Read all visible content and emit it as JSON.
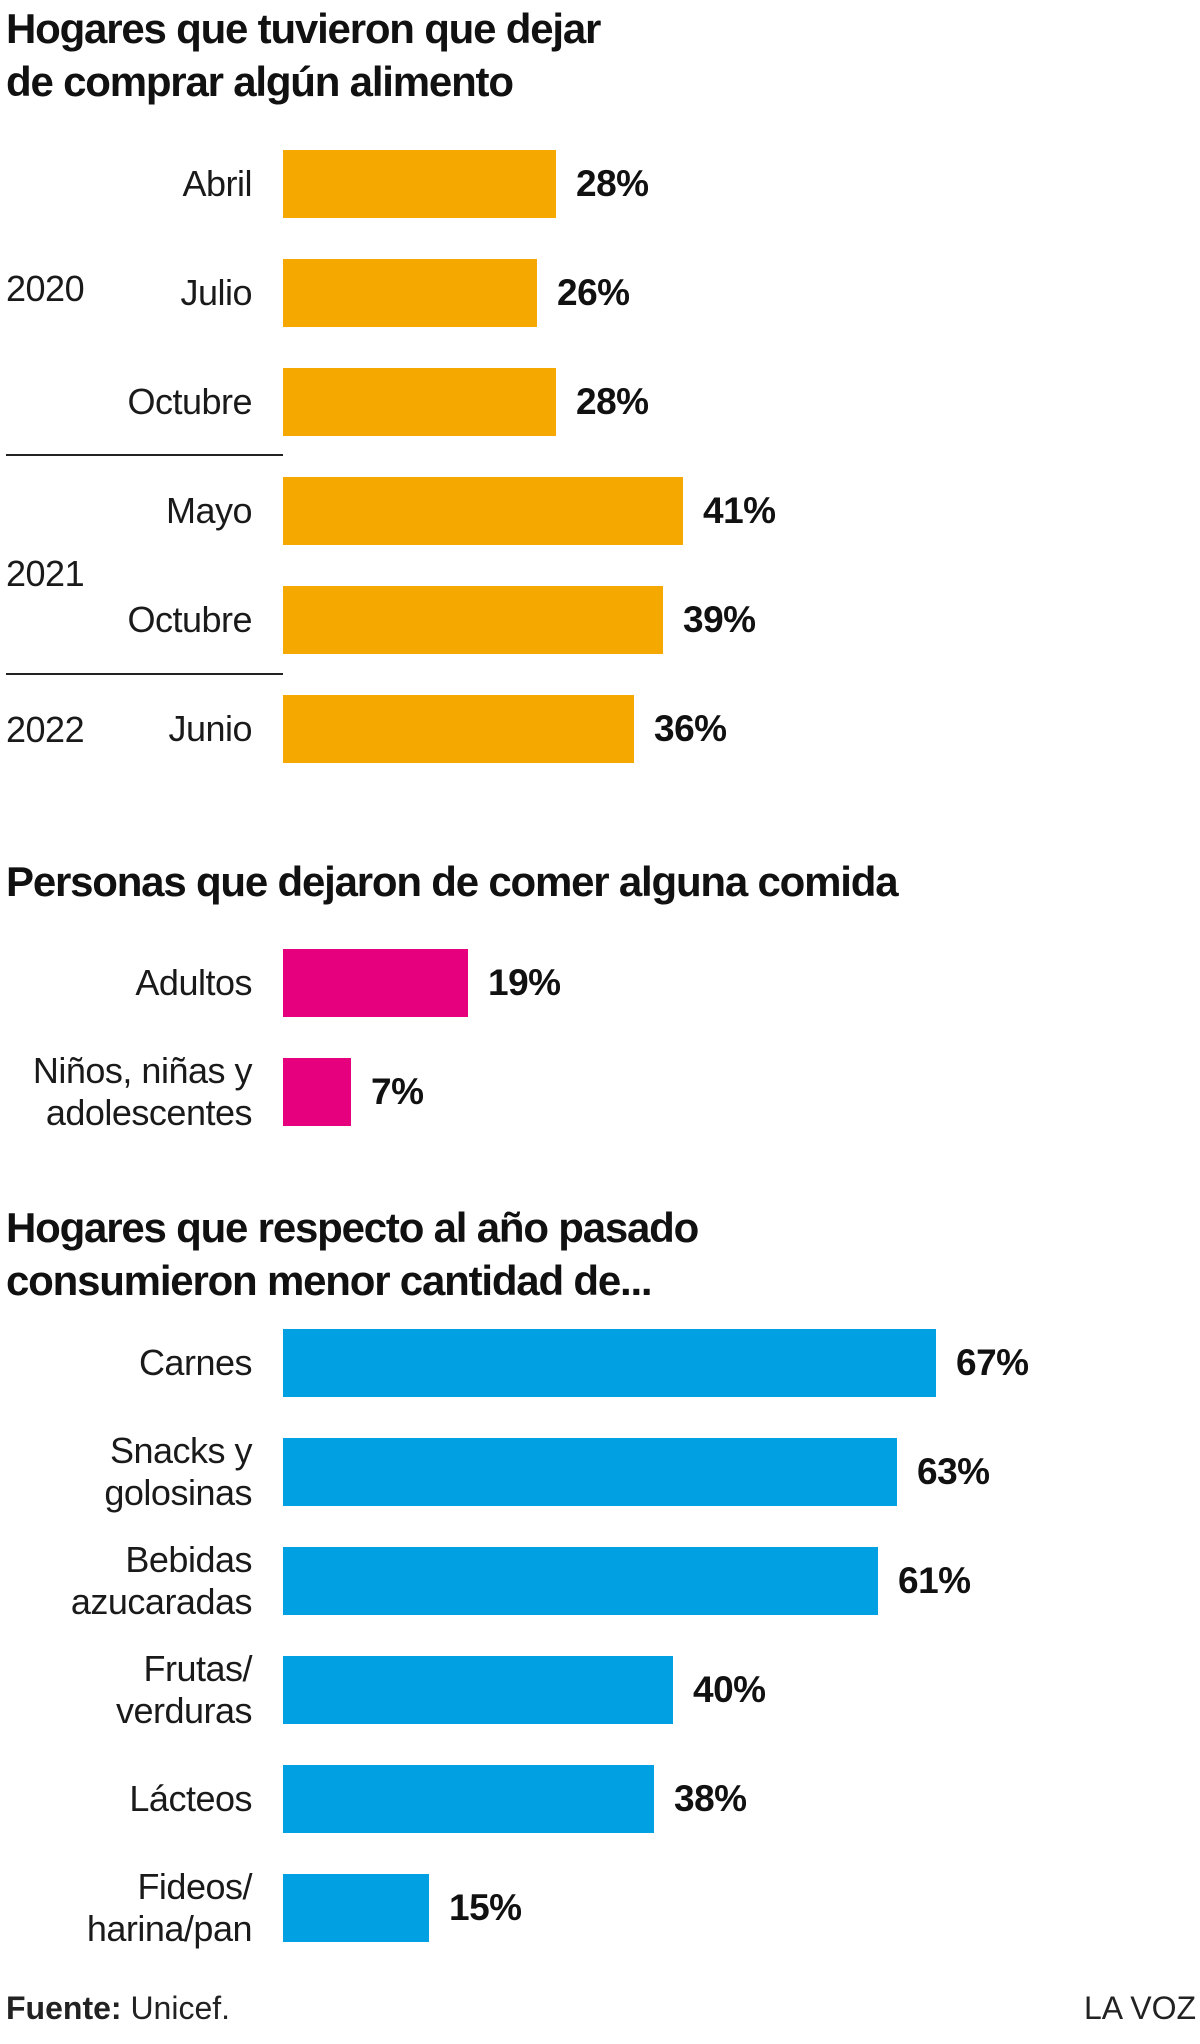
{
  "chart_data": [
    {
      "type": "bar",
      "orientation": "horizontal",
      "title_lines": [
        "Hogares que tuvieron que dejar",
        "de comprar algún alimento"
      ],
      "groups": [
        {
          "label": "2020",
          "categories": [
            "Abril",
            "Julio",
            "Octubre"
          ]
        },
        {
          "label": "2021",
          "categories": [
            "Mayo",
            "Octubre"
          ]
        },
        {
          "label": "2022",
          "categories": [
            "Junio"
          ]
        }
      ],
      "categories": [
        [
          "Abril"
        ],
        [
          "Julio"
        ],
        [
          "Octubre"
        ],
        [
          "Mayo"
        ],
        [
          "Octubre"
        ],
        [
          "Junio"
        ]
      ],
      "values": [
        28,
        26,
        28,
        41,
        39,
        36
      ],
      "value_labels": [
        "28%",
        "26%",
        "28%",
        "41%",
        "39%",
        "36%"
      ],
      "unit": "%",
      "color": "#f5a800"
    },
    {
      "type": "bar",
      "orientation": "horizontal",
      "title_lines": [
        "Personas que dejaron de comer alguna comida"
      ],
      "categories": [
        [
          "Adultos"
        ],
        [
          "Niños, niñas y",
          "adolescentes"
        ]
      ],
      "values": [
        19,
        7
      ],
      "value_labels": [
        "19%",
        "7%"
      ],
      "unit": "%",
      "color": "#e6007e"
    },
    {
      "type": "bar",
      "orientation": "horizontal",
      "title_lines": [
        "Hogares que respecto al año pasado",
        "consumieron menor cantidad de..."
      ],
      "categories": [
        [
          "Carnes"
        ],
        [
          "Snacks y",
          "golosinas"
        ],
        [
          "Bebidas",
          "azucaradas"
        ],
        [
          "Frutas/",
          "verduras"
        ],
        [
          "Lácteos"
        ],
        [
          "Fideos/",
          "harina/pan"
        ]
      ],
      "values": [
        67,
        63,
        61,
        40,
        38,
        15
      ],
      "value_labels": [
        "67%",
        "63%",
        "61%",
        "40%",
        "38%",
        "15%"
      ],
      "unit": "%",
      "color": "#00a0e3"
    }
  ],
  "footer": {
    "source_label": "Fuente:",
    "source_value": "Unicef.",
    "brand": "LA VOZ"
  }
}
